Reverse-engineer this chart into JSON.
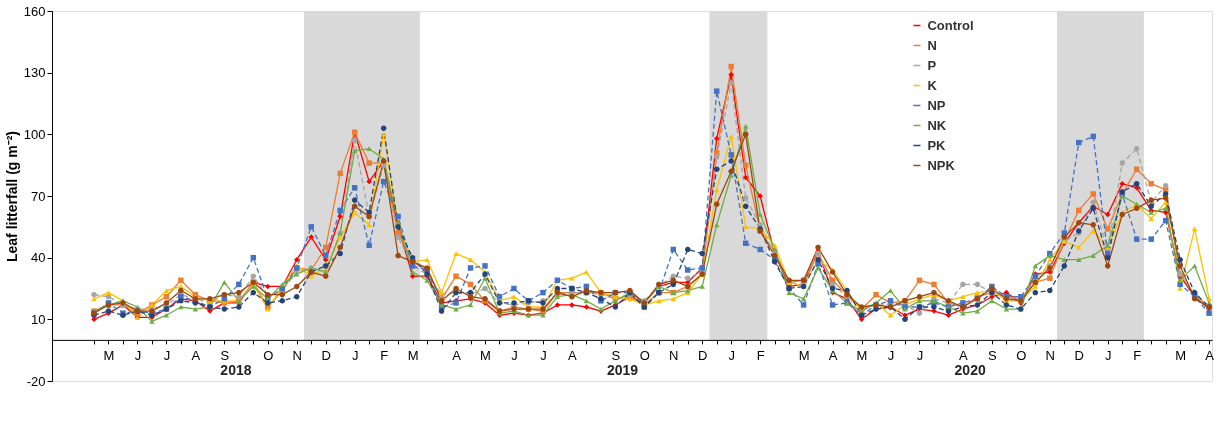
{
  "chart_data": {
    "type": "line",
    "ylabel": "Leaf litterfall (g m⁻²)",
    "categories": [
      null,
      "M",
      null,
      "J",
      null,
      "J",
      null,
      "A",
      null,
      "S",
      null,
      null,
      "O",
      null,
      "N",
      null,
      "D",
      null,
      "J",
      null,
      "F",
      null,
      "M",
      null,
      null,
      "A",
      null,
      "M",
      null,
      "J",
      null,
      "J",
      null,
      "A",
      null,
      null,
      "S",
      null,
      "O",
      null,
      "N",
      null,
      "D",
      null,
      "J",
      null,
      "F",
      null,
      null,
      "M",
      null,
      "A",
      null,
      "M",
      null,
      "J",
      null,
      "J",
      null,
      null,
      "A",
      null,
      "S",
      null,
      "O",
      null,
      "N",
      null,
      "D",
      null,
      "J",
      null,
      "F",
      null,
      null,
      "M",
      null,
      "A"
    ],
    "ylim": [
      -20,
      160
    ],
    "yticks": [
      -20,
      10,
      40,
      70,
      100,
      130,
      160
    ],
    "grid": false,
    "legend": "top right",
    "annotations": [
      "2018",
      "2019",
      "2020"
    ],
    "series": [
      {
        "name": "Control",
        "color": "#ff0000",
        "marker": "diamond",
        "line_style": "solid",
        "values": [
          10,
          13,
          17,
          11,
          11,
          15,
          20,
          19,
          14,
          18,
          18,
          28,
          26,
          26,
          39,
          50,
          39,
          60,
          101,
          77,
          87,
          55,
          31,
          31,
          18,
          19,
          20,
          18,
          12,
          13,
          12,
          13,
          17,
          17,
          16,
          14,
          17,
          21,
          18,
          26,
          28,
          28,
          35,
          98,
          129,
          79,
          70,
          42,
          26,
          27,
          43,
          23,
          20,
          10,
          15,
          16,
          12,
          15,
          14,
          12,
          15,
          17,
          21,
          23,
          18,
          32,
          33,
          47,
          57,
          65,
          61,
          76,
          74,
          63,
          62,
          31,
          21,
          15
        ]
      },
      {
        "name": "N",
        "color": "#ed7d31",
        "marker": "square",
        "line_style": "solid",
        "values": [
          14,
          17,
          17,
          13,
          17,
          21,
          29,
          22,
          19,
          18,
          19,
          28,
          16,
          24,
          35,
          34,
          45,
          81,
          101,
          86,
          86,
          52,
          38,
          34,
          20,
          31,
          27,
          19,
          14,
          16,
          15,
          14,
          23,
          23,
          23,
          23,
          20,
          21,
          17,
          23,
          23,
          26,
          32,
          91,
          133,
          85,
          53,
          43,
          28,
          29,
          42,
          29,
          22,
          15,
          22,
          18,
          19,
          29,
          27,
          18,
          16,
          21,
          23,
          21,
          20,
          28,
          30,
          48,
          63,
          71,
          54,
          71,
          83,
          76,
          73,
          32,
          22,
          16
        ]
      },
      {
        "name": "P",
        "color": "#a5a5a5",
        "marker": "circle",
        "line_style": "dashed",
        "values": [
          22,
          21,
          17,
          15,
          15,
          17,
          22,
          20,
          18,
          22,
          21,
          31,
          21,
          24,
          33,
          35,
          33,
          52,
          97,
          60,
          85,
          50,
          36,
          32,
          22,
          23,
          22,
          25,
          18,
          17,
          18,
          19,
          22,
          23,
          23,
          22,
          20,
          22,
          19,
          26,
          31,
          30,
          33,
          89,
          125,
          69,
          56,
          42,
          28,
          27,
          42,
          27,
          21,
          15,
          17,
          17,
          17,
          13,
          20,
          18,
          27,
          27,
          23,
          21,
          19,
          30,
          36,
          48,
          52,
          67,
          44,
          86,
          93,
          67,
          75,
          32,
          22,
          16
        ]
      },
      {
        "name": "K",
        "color": "#ffc000",
        "marker": "triangle",
        "line_style": "solid",
        "values": [
          20,
          23,
          19,
          11,
          17,
          24,
          26,
          21,
          19,
          19,
          19,
          27,
          15,
          26,
          36,
          31,
          35,
          50,
          62,
          56,
          100,
          57,
          38,
          39,
          23,
          42,
          39,
          33,
          19,
          21,
          16,
          16,
          29,
          30,
          33,
          23,
          21,
          20,
          17,
          19,
          20,
          23,
          32,
          73,
          99,
          55,
          54,
          46,
          28,
          26,
          39,
          34,
          24,
          14,
          18,
          12,
          17,
          20,
          22,
          19,
          21,
          23,
          24,
          19,
          19,
          26,
          39,
          48,
          45,
          53,
          45,
          62,
          66,
          59,
          67,
          25,
          54,
          20
        ]
      },
      {
        "name": "NP",
        "color": "#4472c4",
        "marker": "square",
        "line_style": "dashed",
        "values": [
          13,
          18,
          13,
          14,
          13,
          15,
          21,
          19,
          16,
          20,
          27,
          40,
          20,
          25,
          35,
          55,
          41,
          63,
          74,
          46,
          77,
          60,
          36,
          34,
          16,
          18,
          35,
          36,
          21,
          25,
          19,
          23,
          29,
          25,
          26,
          19,
          23,
          23,
          16,
          23,
          44,
          34,
          35,
          121,
          90,
          47,
          44,
          39,
          25,
          17,
          37,
          17,
          18,
          12,
          17,
          19,
          16,
          16,
          18,
          16,
          18,
          20,
          26,
          21,
          21,
          31,
          42,
          52,
          96,
          99,
          42,
          71,
          49,
          49,
          58,
          27,
          21,
          13
        ]
      },
      {
        "name": "NK",
        "color": "#70ad47",
        "marker": "triangle",
        "line_style": "solid",
        "values": [
          14,
          17,
          19,
          16,
          9,
          12,
          16,
          15,
          16,
          28,
          19,
          26,
          20,
          27,
          32,
          35,
          33,
          52,
          92,
          93,
          88,
          57,
          33,
          29,
          17,
          15,
          17,
          30,
          13,
          14,
          12,
          12,
          21,
          22,
          19,
          15,
          19,
          23,
          18,
          26,
          23,
          24,
          26,
          56,
          80,
          104,
          61,
          44,
          23,
          20,
          35,
          24,
          18,
          14,
          18,
          24,
          15,
          19,
          19,
          16,
          13,
          14,
          19,
          15,
          15,
          36,
          41,
          39,
          39,
          41,
          46,
          70,
          66,
          62,
          64,
          29,
          36,
          18
        ]
      },
      {
        "name": "PK",
        "color": "#264478",
        "marker": "circle",
        "line_style": "dashed",
        "values": [
          12,
          14,
          12,
          14,
          12,
          15,
          19,
          18,
          16,
          15,
          16,
          23,
          18,
          19,
          21,
          33,
          36,
          42,
          68,
          62,
          103,
          55,
          40,
          32,
          14,
          23,
          23,
          32,
          18,
          18,
          19,
          18,
          25,
          25,
          23,
          20,
          16,
          23,
          16,
          23,
          27,
          44,
          42,
          83,
          87,
          65,
          54,
          38,
          25,
          26,
          39,
          25,
          24,
          12,
          15,
          16,
          10,
          16,
          16,
          14,
          16,
          17,
          23,
          17,
          15,
          23,
          24,
          36,
          53,
          64,
          40,
          72,
          76,
          65,
          71,
          39,
          23,
          16
        ]
      },
      {
        "name": "NPK",
        "color": "#9e480e",
        "marker": "circle",
        "line_style": "solid",
        "values": [
          13,
          17,
          18,
          14,
          14,
          18,
          24,
          20,
          20,
          22,
          23,
          28,
          22,
          22,
          26,
          33,
          31,
          45,
          65,
          60,
          87,
          41,
          38,
          35,
          19,
          25,
          21,
          20,
          14,
          15,
          15,
          15,
          23,
          21,
          24,
          23,
          23,
          24,
          18,
          27,
          29,
          26,
          32,
          66,
          82,
          100,
          53,
          41,
          29,
          29,
          45,
          33,
          22,
          16,
          17,
          16,
          19,
          21,
          23,
          19,
          16,
          20,
          25,
          20,
          19,
          28,
          35,
          50,
          57,
          56,
          36,
          61,
          64,
          68,
          69,
          36,
          20,
          16
        ]
      }
    ]
  }
}
